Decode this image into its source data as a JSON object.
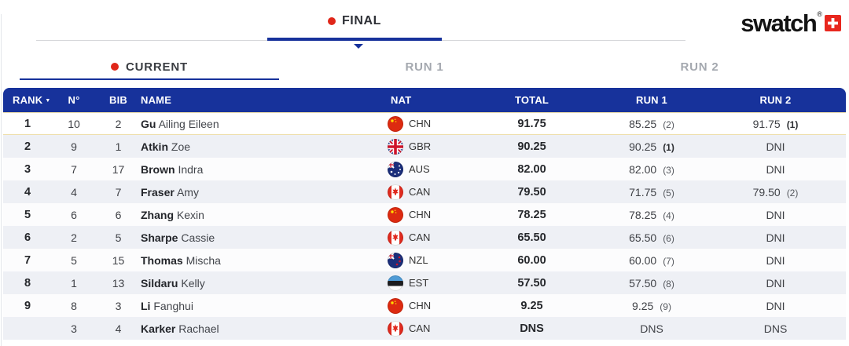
{
  "top": {
    "final_label": "FINAL",
    "brand": {
      "logo_text": "swatch",
      "registered_mark": "®"
    }
  },
  "tabs": {
    "current": "CURRENT",
    "run1": "RUN 1",
    "run2": "RUN 2"
  },
  "table": {
    "columns": {
      "rank": "RANK",
      "n": "N°",
      "bib": "BIB",
      "name": "NAME",
      "nat": "NAT",
      "total": "TOTAL",
      "run1": "RUN 1",
      "run2": "RUN 2"
    },
    "rows": [
      {
        "rank": "1",
        "n": "10",
        "bib": "2",
        "last": "Gu",
        "first": "Ailing Eileen",
        "nat": "CHN",
        "total": "91.75",
        "run1": "85.25",
        "run1_rank": "(2)",
        "run1_rank_bold": false,
        "run2": "91.75",
        "run2_rank": "(1)",
        "run2_rank_bold": true,
        "highlight": true
      },
      {
        "rank": "2",
        "n": "9",
        "bib": "1",
        "last": "Atkin",
        "first": "Zoe",
        "nat": "GBR",
        "total": "90.25",
        "run1": "90.25",
        "run1_rank": "(1)",
        "run1_rank_bold": true,
        "run2": "DNI",
        "run2_rank": "",
        "run2_rank_bold": false,
        "highlight": false
      },
      {
        "rank": "3",
        "n": "7",
        "bib": "17",
        "last": "Brown",
        "first": "Indra",
        "nat": "AUS",
        "total": "82.00",
        "run1": "82.00",
        "run1_rank": "(3)",
        "run1_rank_bold": false,
        "run2": "DNI",
        "run2_rank": "",
        "run2_rank_bold": false,
        "highlight": false
      },
      {
        "rank": "4",
        "n": "4",
        "bib": "7",
        "last": "Fraser",
        "first": "Amy",
        "nat": "CAN",
        "total": "79.50",
        "run1": "71.75",
        "run1_rank": "(5)",
        "run1_rank_bold": false,
        "run2": "79.50",
        "run2_rank": "(2)",
        "run2_rank_bold": false,
        "highlight": false
      },
      {
        "rank": "5",
        "n": "6",
        "bib": "6",
        "last": "Zhang",
        "first": "Kexin",
        "nat": "CHN",
        "total": "78.25",
        "run1": "78.25",
        "run1_rank": "(4)",
        "run1_rank_bold": false,
        "run2": "DNI",
        "run2_rank": "",
        "run2_rank_bold": false,
        "highlight": false
      },
      {
        "rank": "6",
        "n": "2",
        "bib": "5",
        "last": "Sharpe",
        "first": "Cassie",
        "nat": "CAN",
        "total": "65.50",
        "run1": "65.50",
        "run1_rank": "(6)",
        "run1_rank_bold": false,
        "run2": "DNI",
        "run2_rank": "",
        "run2_rank_bold": false,
        "highlight": false
      },
      {
        "rank": "7",
        "n": "5",
        "bib": "15",
        "last": "Thomas",
        "first": "Mischa",
        "nat": "NZL",
        "total": "60.00",
        "run1": "60.00",
        "run1_rank": "(7)",
        "run1_rank_bold": false,
        "run2": "DNI",
        "run2_rank": "",
        "run2_rank_bold": false,
        "highlight": false
      },
      {
        "rank": "8",
        "n": "1",
        "bib": "13",
        "last": "Sildaru",
        "first": "Kelly",
        "nat": "EST",
        "total": "57.50",
        "run1": "57.50",
        "run1_rank": "(8)",
        "run1_rank_bold": false,
        "run2": "DNI",
        "run2_rank": "",
        "run2_rank_bold": false,
        "highlight": false
      },
      {
        "rank": "9",
        "n": "8",
        "bib": "3",
        "last": "Li",
        "first": "Fanghui",
        "nat": "CHN",
        "total": "9.25",
        "run1": "9.25",
        "run1_rank": "(9)",
        "run1_rank_bold": false,
        "run2": "DNI",
        "run2_rank": "",
        "run2_rank_bold": false,
        "highlight": false
      },
      {
        "rank": "",
        "n": "3",
        "bib": "4",
        "last": "Karker",
        "first": "Rachael",
        "nat": "CAN",
        "total": "DNS",
        "run1": "DNS",
        "run1_rank": "",
        "run1_rank_bold": false,
        "run2": "DNS",
        "run2_rank": "",
        "run2_rank_bold": false,
        "highlight": false
      }
    ]
  },
  "colors": {
    "navy": "#17329b",
    "live_red": "#e02619",
    "swatch_red": "#e8271e",
    "row_alt": "#eef0f5",
    "highlight_border": "#eedfac",
    "inactive_tab_text": "#a4a8af"
  }
}
